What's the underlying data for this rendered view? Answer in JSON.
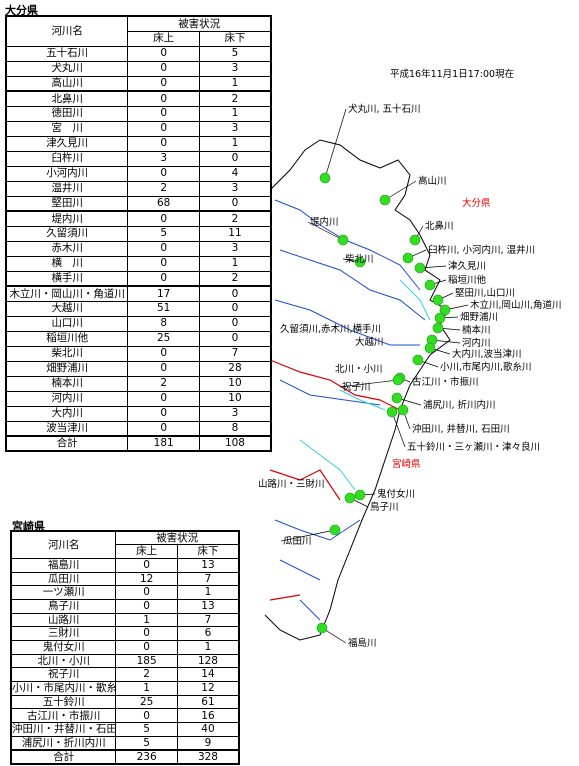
{
  "oita": {
    "title": "大分県",
    "header": {
      "name": "河川名",
      "damage": "被害状況",
      "above": "床上",
      "below": "床下"
    },
    "rows": [
      [
        "五十石川",
        "0",
        "5"
      ],
      [
        "犬丸川",
        "0",
        "3"
      ],
      [
        "高山川",
        "0",
        "1"
      ],
      [
        "北鼻川",
        "0",
        "2"
      ],
      [
        "徳田川",
        "0",
        "1"
      ],
      [
        "宮　川",
        "0",
        "3"
      ],
      [
        "津久見川",
        "0",
        "1"
      ],
      [
        "臼杵川",
        "3",
        "0"
      ],
      [
        "小河内川",
        "0",
        "4"
      ],
      [
        "温井川",
        "2",
        "3"
      ],
      [
        "堅田川",
        "68",
        "0"
      ],
      [
        "堤内川",
        "0",
        "2"
      ],
      [
        "久留須川",
        "5",
        "11"
      ],
      [
        "赤木川",
        "0",
        "3"
      ],
      [
        "横　川",
        "0",
        "1"
      ],
      [
        "横手川",
        "0",
        "2"
      ],
      [
        "木立川・岡山川・角道川",
        "17",
        "0"
      ],
      [
        "大越川",
        "51",
        "0"
      ],
      [
        "山口川",
        "8",
        "0"
      ],
      [
        "稲垣川他",
        "25",
        "0"
      ],
      [
        "柴北川",
        "0",
        "7"
      ],
      [
        "畑野浦川",
        "0",
        "28"
      ],
      [
        "楠本川",
        "2",
        "10"
      ],
      [
        "河内川",
        "0",
        "10"
      ],
      [
        "大内川",
        "0",
        "3"
      ],
      [
        "波当津川",
        "0",
        "8"
      ],
      [
        "合計",
        "181",
        "108"
      ]
    ]
  },
  "miyazaki": {
    "title": "宮崎県",
    "header": {
      "name": "河川名",
      "damage": "被害状況",
      "above": "床上",
      "below": "床下"
    },
    "rows": [
      [
        "福島川",
        "0",
        "13"
      ],
      [
        "瓜田川",
        "12",
        "7"
      ],
      [
        "一ツ瀬川",
        "0",
        "1"
      ],
      [
        "鳥子川",
        "0",
        "13"
      ],
      [
        "山路川",
        "1",
        "7"
      ],
      [
        "三財川",
        "0",
        "6"
      ],
      [
        "鬼付女川",
        "0",
        "1"
      ],
      [
        "北川・小川",
        "185",
        "128"
      ],
      [
        "祝子川",
        "2",
        "14"
      ],
      [
        "小川・市尾内川・歌糸川",
        "1",
        "12"
      ],
      [
        "五十鈴川",
        "25",
        "61"
      ],
      [
        "古江川・市振川",
        "0",
        "16"
      ],
      [
        "沖田川・井替川・石田川",
        "5",
        "40"
      ],
      [
        "浦尻川・折川内川",
        "5",
        "9"
      ],
      [
        "合計",
        "236",
        "328"
      ]
    ]
  },
  "map": {
    "timestamp": "平成16年11月1日17:00現在",
    "labels": [
      "犬丸川, 五十石川",
      "高山川",
      "大分県",
      "北鼻川",
      "臼杵川, 小河内川, 温井川",
      "津久見川",
      "稲垣川他",
      "堅田川,山口川",
      "木立川,岡山川,角道川",
      "畑野浦川",
      "楠本川",
      "河内川",
      "大内川,波当津川",
      "小川,市尾内川,歌糸川",
      "古江川・市振川",
      "浦尻川, 折川内川",
      "沖田川, 井替川, 石田川",
      "五十鈴川・三ヶ瀬川・津々良川",
      "宮崎県",
      "鬼付女川",
      "鳥子川",
      "福島川",
      "堤内川",
      "柴北川",
      "久留須川,赤木川,横手川",
      "大越川",
      "北川・小川",
      "祝子川",
      "山路川・三財川",
      "瓜田川"
    ]
  }
}
